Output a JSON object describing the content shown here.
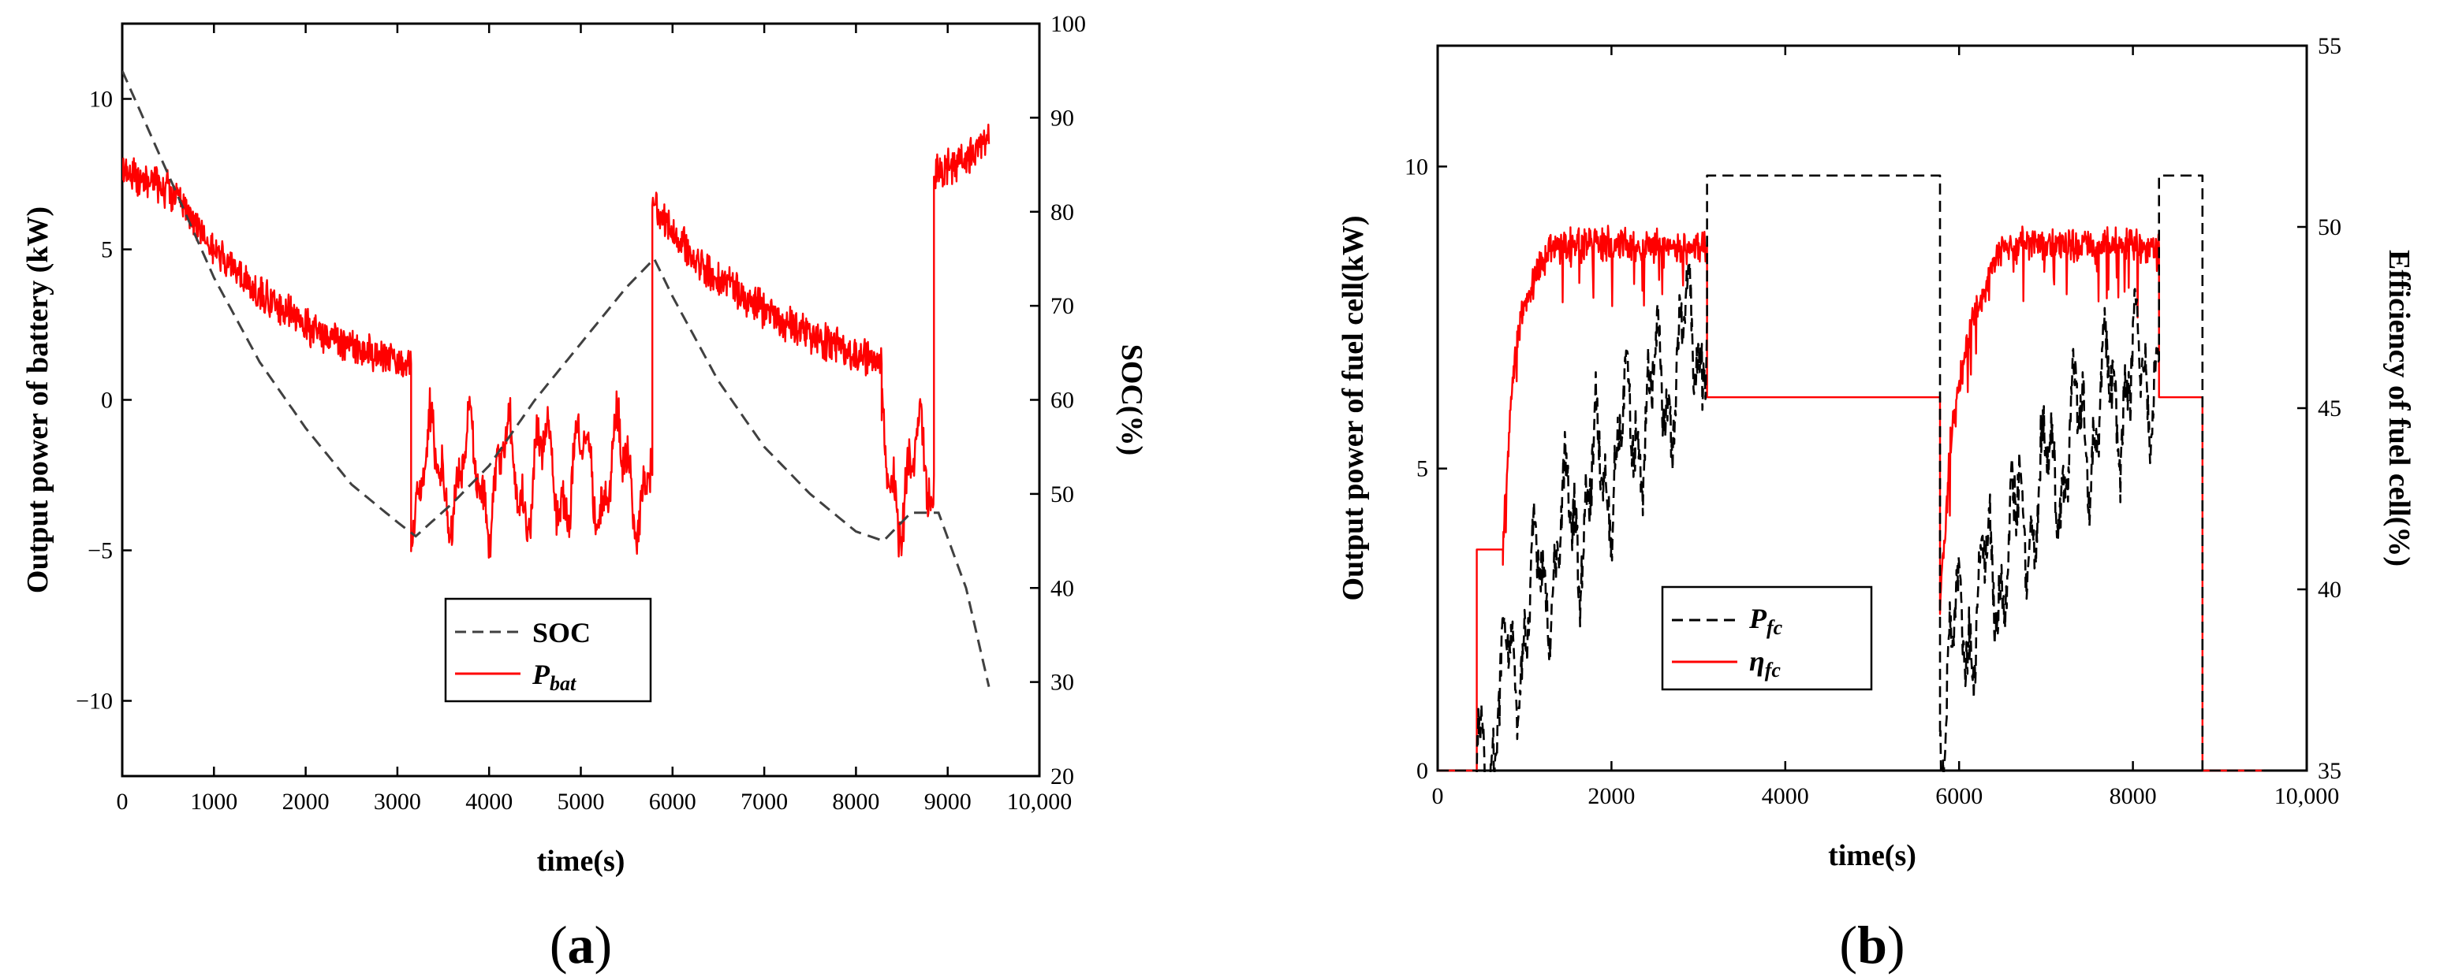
{
  "chart_data": [
    {
      "type": "line",
      "panel_label": "a",
      "xlabel": "time(s)",
      "ylabel_left": "Output power of battery (kW)",
      "ylabel_right": "SOC(%)",
      "xlim": [
        0,
        10000
      ],
      "ylim_left": [
        -12.5,
        12.5
      ],
      "ylim_right": [
        20,
        100
      ],
      "x_ticks": [
        "0",
        "1000",
        "2000",
        "3000",
        "4000",
        "5000",
        "6000",
        "7000",
        "8000",
        "9000",
        "10,000"
      ],
      "y_ticks_left": [
        "-10",
        "-5",
        "0",
        "5",
        "10"
      ],
      "y_ticks_right": [
        "20",
        "30",
        "40",
        "50",
        "60",
        "70",
        "80",
        "90",
        "100"
      ],
      "legend_position": "lower-center",
      "legend": {
        "soc": "SOC",
        "pbat_main": "P",
        "pbat_sub": "bat"
      },
      "colors": {
        "soc": "#404040",
        "pbat": "#ff0000"
      },
      "series": [
        {
          "name": "SOC",
          "axis": "right",
          "style": "dashed",
          "x": [
            0,
            500,
            1000,
            1500,
            2000,
            2500,
            3000,
            3200,
            3600,
            4000,
            4500,
            5000,
            5500,
            5800,
            6000,
            6500,
            7000,
            7500,
            8000,
            8300,
            8600,
            8900,
            9200,
            9450
          ],
          "values": [
            95,
            84,
            73,
            64,
            57,
            51,
            47,
            45.5,
            49,
            53,
            60,
            66,
            72,
            75,
            71,
            62,
            55,
            50,
            46,
            45,
            48,
            48,
            40,
            29.5
          ]
        },
        {
          "name": "P_bat",
          "axis": "left",
          "style": "solid",
          "segments": [
            {
              "x": [
                0,
                500,
                1000,
                1500,
                2000,
                2500,
                3000,
                3150
              ],
              "values": [
                7.5,
                7.0,
                5.0,
                3.5,
                2.5,
                1.8,
                1.3,
                1.2
              ]
            },
            {
              "x": [
                3150,
                5780
              ],
              "values": [
                -2.5,
                -2.5
              ]
            },
            {
              "x": [
                5780,
                6000,
                6500,
                7000,
                7500,
                8000,
                8280
              ],
              "values": [
                6.5,
                5.5,
                4.0,
                3.0,
                2.2,
                1.5,
                1.2
              ]
            },
            {
              "x": [
                8280,
                8850
              ],
              "values": [
                -2.5,
                -2.5
              ]
            },
            {
              "x": [
                8850,
                9450
              ],
              "values": [
                7.5,
                8.5
              ]
            }
          ]
        }
      ]
    },
    {
      "type": "line",
      "panel_label": "b",
      "xlabel": "time(s)",
      "ylabel_left": "Output power of fuel cell(kW)",
      "ylabel_right": "Efficiency of fuel  cell(%)",
      "xlim": [
        0,
        10000
      ],
      "ylim_left": [
        0,
        12
      ],
      "ylim_right": [
        35,
        55
      ],
      "x_ticks": [
        "0",
        "2000",
        "4000",
        "6000",
        "8000",
        "10,000"
      ],
      "y_ticks_left": [
        "0",
        "5",
        "10"
      ],
      "y_ticks_right": [
        "35",
        "40",
        "45",
        "50",
        "55"
      ],
      "legend_position": "lower-center",
      "legend": {
        "pfc_main": "P",
        "pfc_sub": "fc",
        "eta_main": "η",
        "eta_sub": "fc"
      },
      "colors": {
        "pfc": "#000000",
        "eta": "#ff0000"
      },
      "series": [
        {
          "name": "P_fc",
          "axis": "left",
          "style": "dashed",
          "segments": [
            {
              "x": [
                0,
                450
              ],
              "values": [
                0,
                0
              ]
            },
            {
              "x": [
                450,
                700,
                1000,
                1500,
                2000,
                2500,
                3100
              ],
              "values": [
                0,
                1.0,
                2.5,
                4.0,
                5.2,
                6.2,
                7.5
              ]
            },
            {
              "x": [
                3100,
                5780
              ],
              "values": [
                9.85,
                9.85
              ]
            },
            {
              "x": [
                5780,
                6000,
                6500,
                7000,
                7500,
                8000,
                8300
              ],
              "values": [
                1.0,
                2.3,
                3.5,
                4.8,
                5.8,
                6.5,
                6.8
              ]
            },
            {
              "x": [
                8300,
                8800
              ],
              "values": [
                9.85,
                9.85
              ]
            },
            {
              "x": [
                8800,
                9500
              ],
              "values": [
                0,
                0
              ]
            }
          ]
        },
        {
          "name": "eta_fc",
          "axis": "right",
          "style": "solid",
          "segments": [
            {
              "x": [
                0,
                450
              ],
              "values": [
                35,
                35
              ]
            },
            {
              "x": [
                450,
                750
              ],
              "values": [
                41.1,
                41.1
              ]
            },
            {
              "x": [
                750,
                850,
                950,
                1100,
                1300,
                3100
              ],
              "values": [
                41.1,
                45.5,
                47.5,
                48.5,
                49.5,
                49.5
              ]
            },
            {
              "x": [
                3100,
                5780
              ],
              "values": [
                45.3,
                45.3
              ]
            },
            {
              "x": [
                5780,
                5900,
                6100,
                6500,
                8300
              ],
              "values": [
                39.5,
                44.0,
                47.0,
                49.5,
                49.5
              ]
            },
            {
              "x": [
                8300,
                8800
              ],
              "values": [
                45.3,
                45.3
              ]
            },
            {
              "x": [
                8800,
                9500
              ],
              "values": [
                35,
                35
              ]
            }
          ]
        }
      ]
    }
  ]
}
